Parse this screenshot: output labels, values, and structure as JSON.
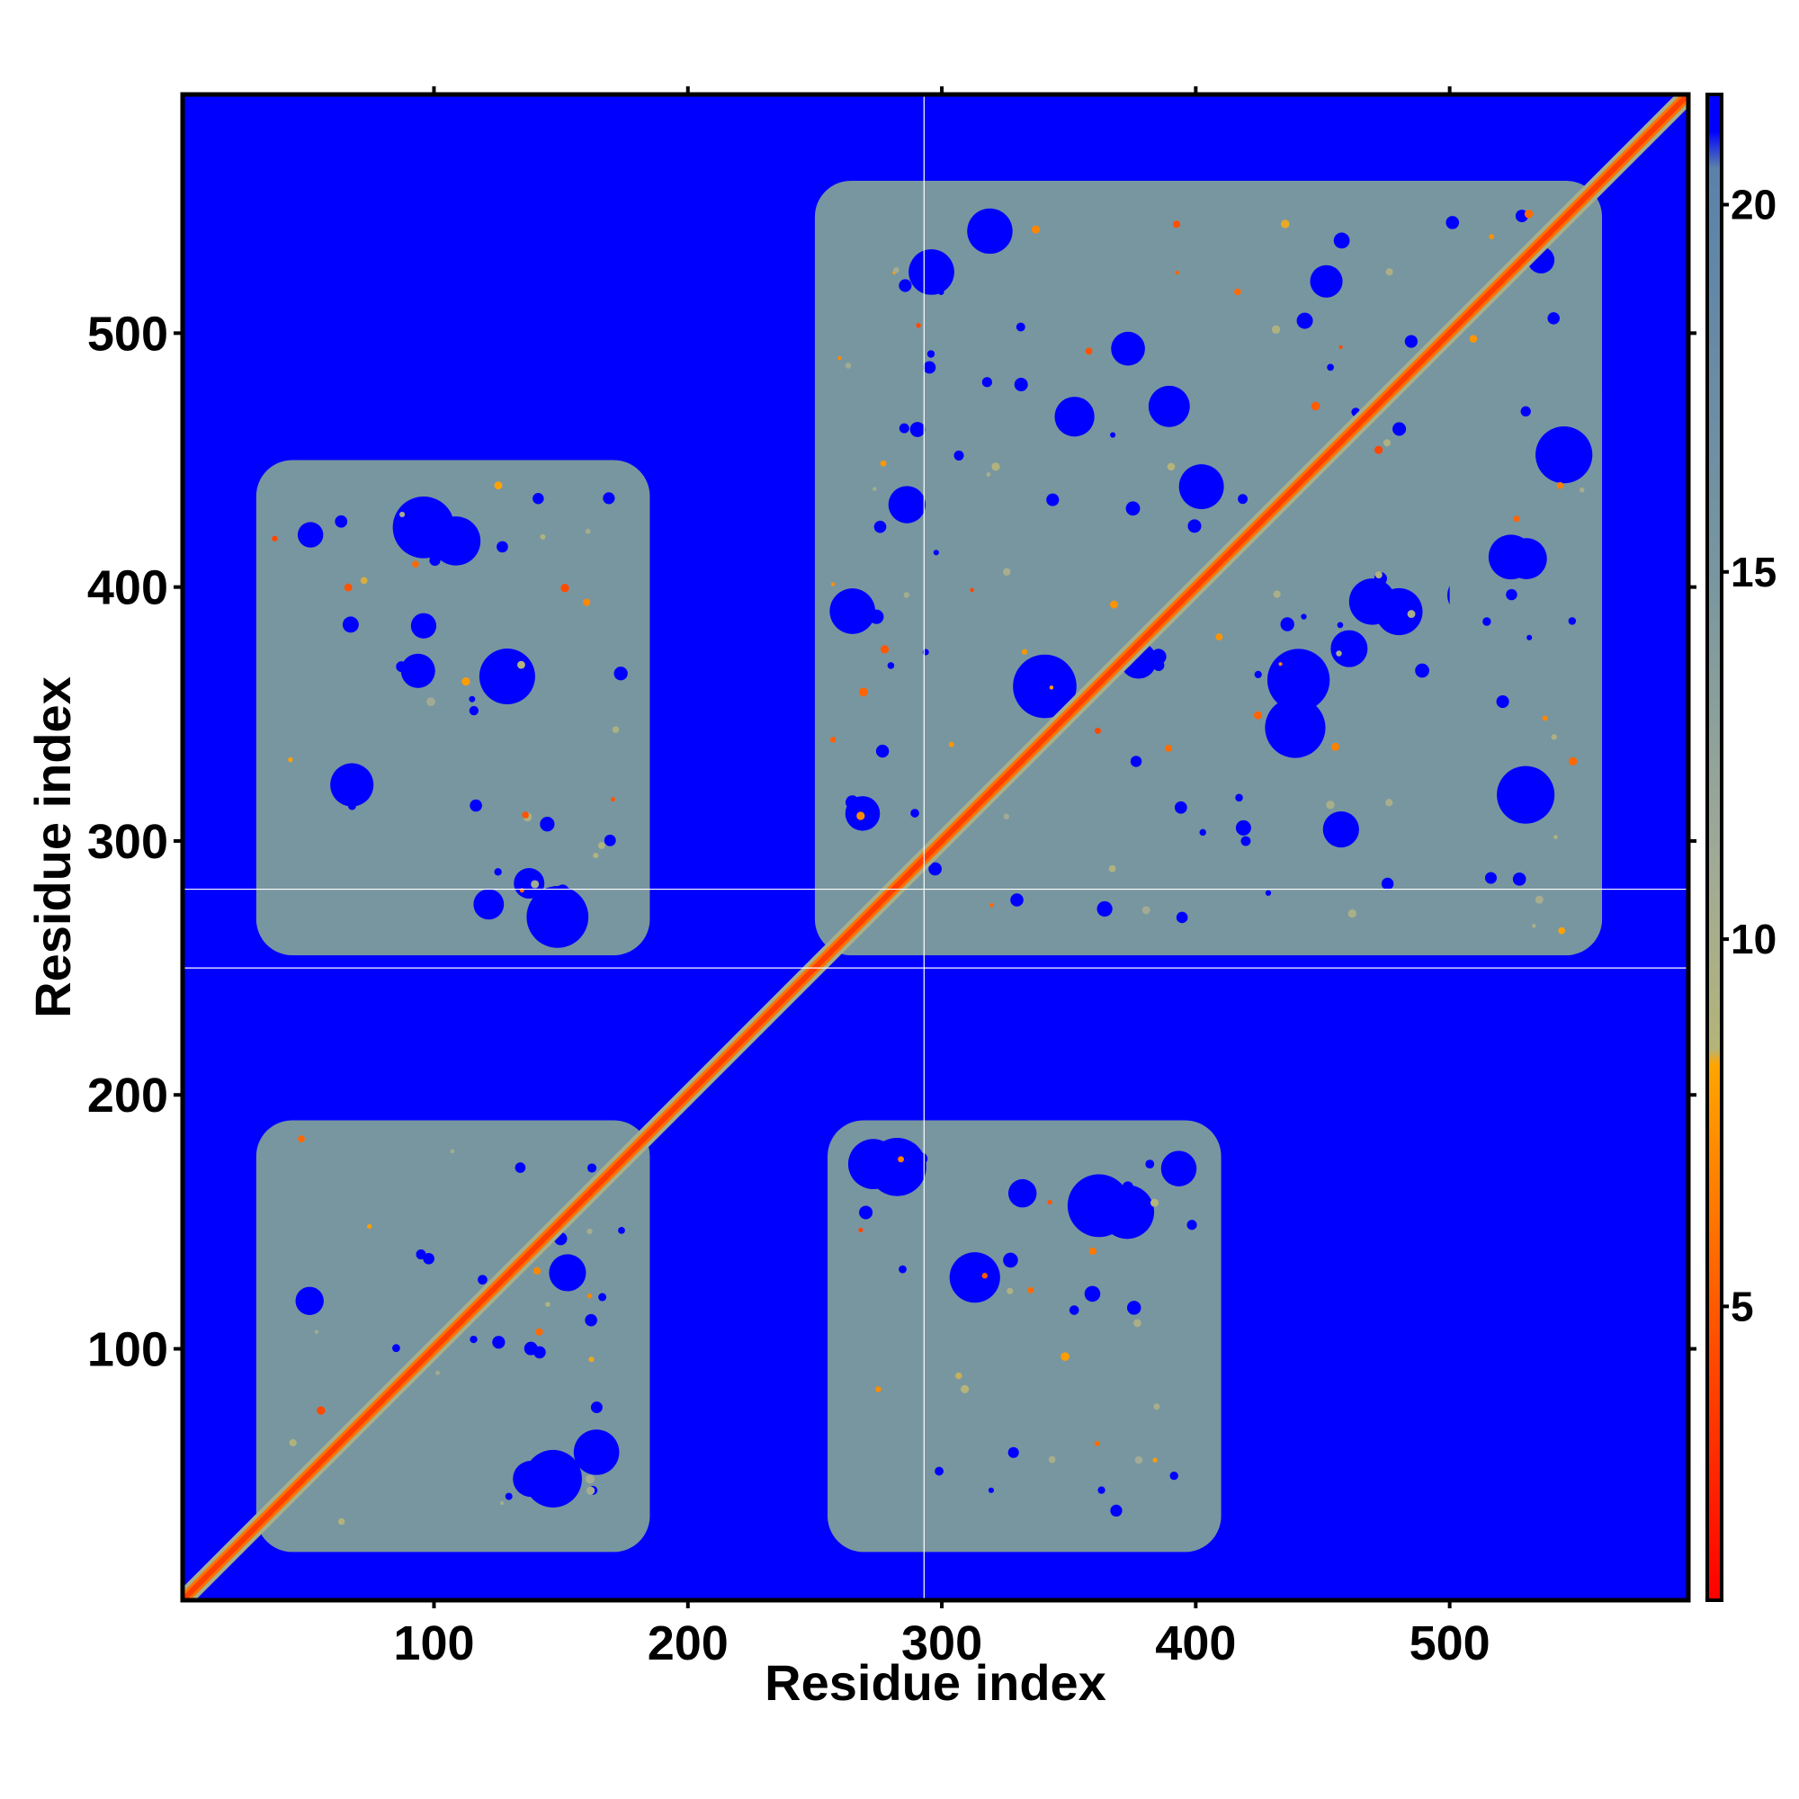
{
  "chart_data": {
    "type": "heatmap",
    "title": "",
    "xlabel": "Residue index",
    "ylabel": "Residue index",
    "x_range": [
      1,
      594
    ],
    "y_range": [
      1,
      594
    ],
    "x_ticks": [
      100,
      200,
      300,
      400,
      500
    ],
    "y_ticks": [
      100,
      200,
      300,
      400,
      500
    ],
    "colorbar": {
      "range": [
        1,
        21.5
      ],
      "ticks": [
        5,
        10,
        15,
        20
      ],
      "stops": [
        {
          "value": 1,
          "color": "#ff0000"
        },
        {
          "value": 5,
          "color": "#ff5a00"
        },
        {
          "value": 8.3,
          "color": "#ffa500"
        },
        {
          "value": 8.5,
          "color": "#b4b478"
        },
        {
          "value": 11,
          "color": "#a0aa96"
        },
        {
          "value": 15,
          "color": "#7896a0"
        },
        {
          "value": 20.5,
          "color": "#5a82aa"
        },
        {
          "value": 21,
          "color": "#0000ff"
        }
      ]
    },
    "background_color": "#0000ff",
    "contact_domains": [
      {
        "x": [
          30,
          185
        ],
        "y": [
          20,
          190
        ],
        "mean_distance": 15
      },
      {
        "x": [
          30,
          185
        ],
        "y": [
          255,
          450
        ],
        "mean_distance": 15
      },
      {
        "x": [
          255,
          410
        ],
        "y": [
          20,
          190
        ],
        "mean_distance": 15
      },
      {
        "x": [
          250,
          560
        ],
        "y": [
          255,
          560
        ],
        "mean_distance": 15
      },
      {
        "x": [
          500,
          560
        ],
        "y": [
          255,
          490
        ],
        "mean_distance": 15
      }
    ],
    "gap_lines": {
      "x": [
        293
      ],
      "y": [
        250,
        281
      ]
    },
    "diagonal_min_distance": 3.8
  }
}
